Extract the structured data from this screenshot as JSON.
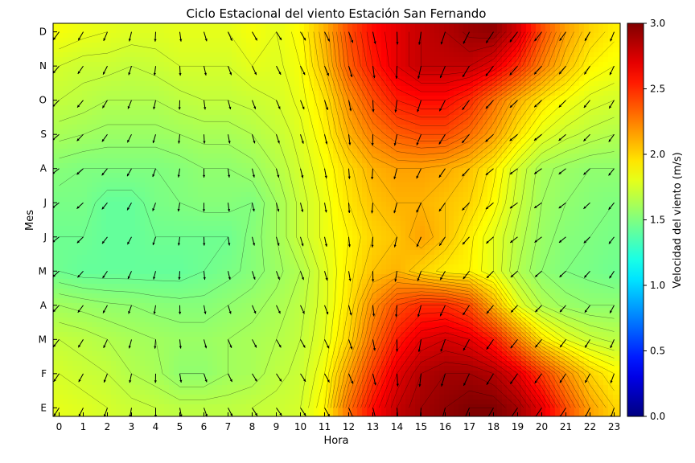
{
  "chart_data": {
    "type": "heatmap",
    "title": "Ciclo Estacional del viento Estación San Fernando",
    "xlabel": "Hora",
    "ylabel": "Mes",
    "colorbar_label": "Velocidad del viento (m/s)",
    "x_ticks": [
      "0",
      "1",
      "2",
      "3",
      "4",
      "5",
      "6",
      "7",
      "8",
      "9",
      "10",
      "11",
      "12",
      "13",
      "14",
      "15",
      "16",
      "17",
      "18",
      "19",
      "20",
      "21",
      "22",
      "23"
    ],
    "y_ticks": [
      "E",
      "F",
      "M",
      "A",
      "M",
      "J",
      "J",
      "A",
      "S",
      "O",
      "N",
      "D"
    ],
    "colorbar_ticks": [
      "0.0",
      "0.5",
      "1.0",
      "1.5",
      "2.0",
      "2.5",
      "3.0"
    ],
    "zlim": [
      0,
      3
    ],
    "colormap": "jet",
    "contour_lines": true,
    "wind_vectors": true,
    "x": [
      0,
      1,
      2,
      3,
      4,
      5,
      6,
      7,
      8,
      9,
      10,
      11,
      12,
      13,
      14,
      15,
      16,
      17,
      18,
      19,
      20,
      21,
      22,
      23
    ],
    "y": [
      "E",
      "F",
      "M",
      "A",
      "M",
      "J",
      "J",
      "A",
      "S",
      "O",
      "N",
      "D"
    ],
    "z": [
      [
        1.8,
        1.78,
        1.75,
        1.72,
        1.7,
        1.68,
        1.68,
        1.68,
        1.7,
        1.72,
        1.75,
        1.9,
        2.3,
        2.6,
        2.8,
        2.9,
        2.95,
        3.0,
        3.0,
        2.9,
        2.7,
        2.4,
        2.15,
        2.0
      ],
      [
        1.75,
        1.72,
        1.7,
        1.65,
        1.62,
        1.55,
        1.55,
        1.6,
        1.62,
        1.68,
        1.72,
        1.85,
        2.15,
        2.45,
        2.7,
        2.85,
        2.9,
        2.9,
        2.85,
        2.7,
        2.45,
        2.2,
        2.0,
        1.9
      ],
      [
        1.7,
        1.68,
        1.65,
        1.62,
        1.6,
        1.58,
        1.58,
        1.6,
        1.62,
        1.65,
        1.7,
        1.8,
        2.0,
        2.3,
        2.55,
        2.7,
        2.75,
        2.7,
        2.55,
        2.25,
        1.95,
        1.8,
        1.72,
        1.68
      ],
      [
        1.6,
        1.58,
        1.56,
        1.55,
        1.53,
        1.52,
        1.52,
        1.55,
        1.58,
        1.62,
        1.68,
        1.78,
        1.95,
        2.2,
        2.4,
        2.5,
        2.5,
        2.4,
        2.1,
        1.8,
        1.65,
        1.58,
        1.55,
        1.55
      ],
      [
        1.45,
        1.42,
        1.42,
        1.42,
        1.42,
        1.42,
        1.45,
        1.48,
        1.52,
        1.58,
        1.65,
        1.78,
        1.92,
        2.05,
        2.1,
        2.0,
        1.92,
        1.9,
        1.8,
        1.65,
        1.55,
        1.5,
        1.48,
        1.45
      ],
      [
        1.45,
        1.45,
        1.42,
        1.42,
        1.45,
        1.45,
        1.45,
        1.45,
        1.52,
        1.6,
        1.72,
        1.82,
        1.9,
        2.0,
        2.05,
        2.15,
        2.05,
        1.92,
        1.8,
        1.68,
        1.58,
        1.52,
        1.5,
        1.48
      ],
      [
        1.48,
        1.48,
        1.42,
        1.42,
        1.48,
        1.5,
        1.52,
        1.52,
        1.5,
        1.6,
        1.72,
        1.82,
        1.95,
        2.05,
        2.1,
        2.1,
        2.05,
        2.0,
        1.88,
        1.72,
        1.6,
        1.55,
        1.52,
        1.5
      ],
      [
        1.52,
        1.5,
        1.5,
        1.5,
        1.5,
        1.52,
        1.55,
        1.55,
        1.58,
        1.65,
        1.75,
        1.85,
        1.98,
        2.1,
        2.15,
        2.15,
        2.12,
        2.05,
        1.92,
        1.75,
        1.62,
        1.58,
        1.55,
        1.55
      ],
      [
        1.62,
        1.6,
        1.58,
        1.58,
        1.58,
        1.6,
        1.62,
        1.62,
        1.65,
        1.7,
        1.78,
        1.9,
        2.1,
        2.25,
        2.35,
        2.4,
        2.4,
        2.3,
        2.15,
        1.95,
        1.8,
        1.72,
        1.68,
        1.65
      ],
      [
        1.7,
        1.68,
        1.65,
        1.65,
        1.65,
        1.68,
        1.7,
        1.7,
        1.72,
        1.75,
        1.82,
        1.95,
        2.2,
        2.4,
        2.55,
        2.6,
        2.6,
        2.5,
        2.3,
        2.1,
        1.95,
        1.85,
        1.78,
        1.75
      ],
      [
        1.75,
        1.72,
        1.72,
        1.7,
        1.72,
        1.75,
        1.75,
        1.75,
        1.8,
        1.78,
        1.85,
        2.05,
        2.35,
        2.55,
        2.7,
        2.8,
        2.8,
        2.8,
        2.7,
        2.5,
        2.25,
        2.05,
        1.9,
        1.85
      ],
      [
        1.85,
        1.82,
        1.8,
        1.78,
        1.78,
        1.8,
        1.8,
        1.8,
        1.85,
        1.8,
        1.88,
        2.1,
        2.4,
        2.6,
        2.7,
        2.8,
        2.85,
        2.92,
        2.95,
        2.75,
        2.4,
        2.15,
        2.0,
        1.92
      ]
    ]
  }
}
